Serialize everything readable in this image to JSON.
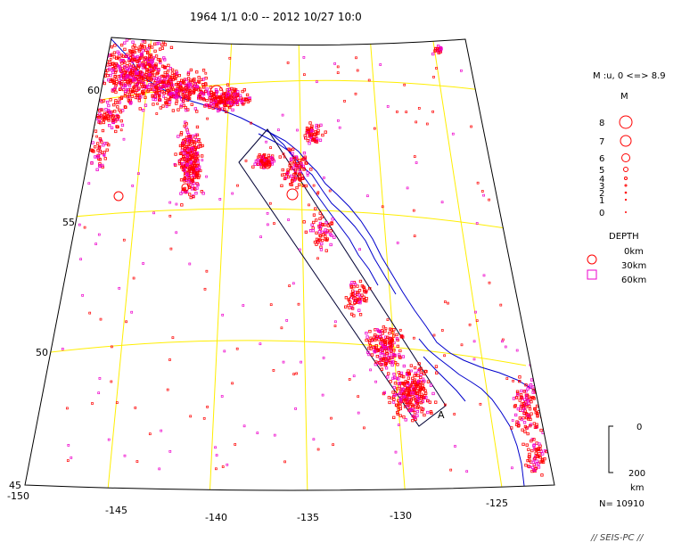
{
  "title": "1964 1/1 0:0 -- 2012 10/27 10:0",
  "footer": "// SEIS-PC //",
  "colors": {
    "background": "#ffffff",
    "frame": "#000000",
    "grid": "#ffee00",
    "coast": "#0000cc",
    "shallow": "#ff0000",
    "deep": "#ee00cc"
  },
  "map": {
    "lon_labels": [
      "-150",
      "-145",
      "-140",
      "-135",
      "-130",
      "-125"
    ],
    "lat_labels": [
      "45",
      "50",
      "55",
      "60"
    ],
    "section_label": "A"
  },
  "legend": {
    "mag_range": "M :u, 0 <=> 8.9",
    "mag_title": "M",
    "mag_labels": [
      "8",
      "7",
      "6",
      "5",
      "4",
      "3",
      "2",
      "1",
      "0"
    ],
    "depth_title": "DEPTH",
    "depth_labels": [
      "0km",
      "30km",
      "60km"
    ],
    "scale_top": "0",
    "scale_bottom": "200",
    "scale_unit": "km",
    "count": "N= 10910"
  }
}
